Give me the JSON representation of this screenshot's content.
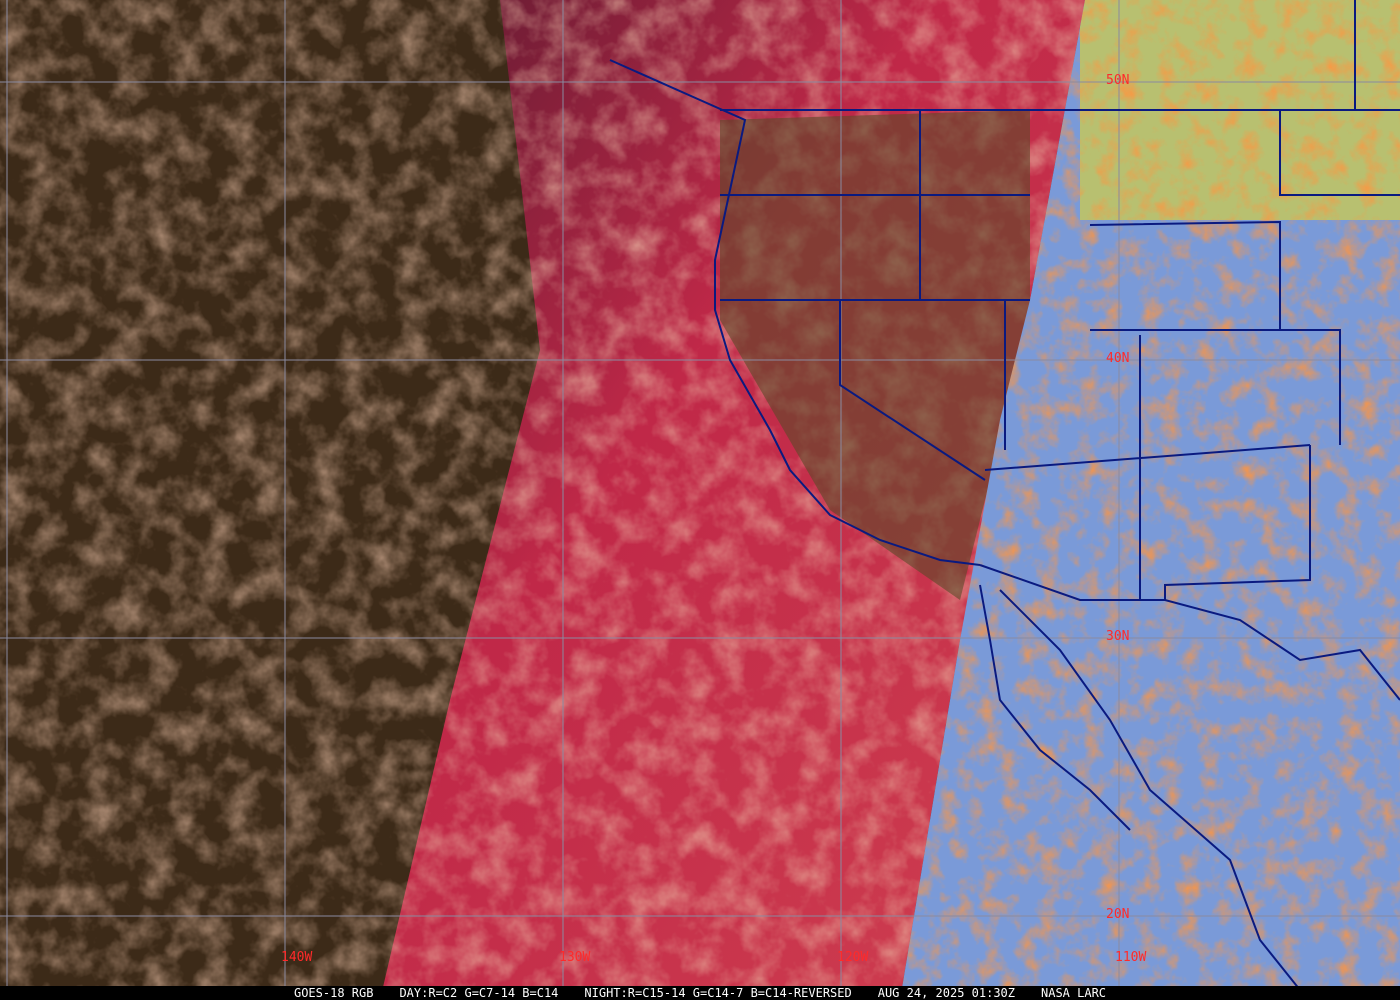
{
  "caption": {
    "satellite": "GOES-18 RGB",
    "day_recipe": "DAY:R=C2 G=C7-14 B=C14",
    "night_recipe": "NIGHT:R=C15-14 G=C14-7 B=C14-REVERSED",
    "timestamp": "AUG 24, 2025 01:30Z",
    "credit": "NASA LARC"
  },
  "grid": {
    "longitudes": [
      {
        "value": -140,
        "label": "140W"
      },
      {
        "value": -130,
        "label": "130W"
      },
      {
        "value": -120,
        "label": "120W"
      },
      {
        "value": -110,
        "label": "110W"
      }
    ],
    "latitudes": [
      {
        "value": 50,
        "label": "50N"
      },
      {
        "value": 40,
        "label": "40N"
      },
      {
        "value": 30,
        "label": "30N"
      },
      {
        "value": 20,
        "label": "20N"
      }
    ],
    "line_color": "#8a8aa0",
    "label_color": "#ff2a2a",
    "border_color": "#0a1a80"
  }
}
